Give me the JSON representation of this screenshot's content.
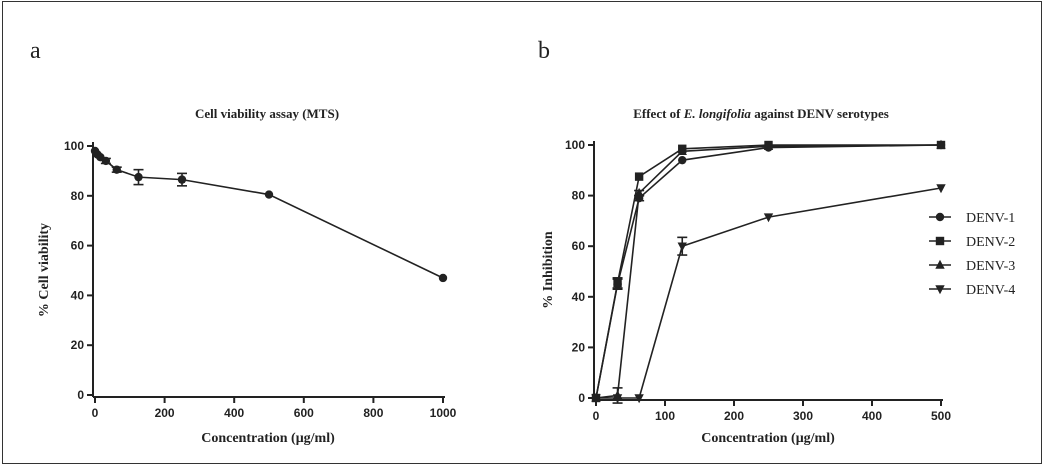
{
  "chart_data": [
    {
      "panel": "a",
      "type": "line",
      "title": "Cell viability assay (MTS)",
      "xlabel": "Concentration (μg/ml)",
      "ylabel": "% Cell viability",
      "xlim": [
        0,
        1000
      ],
      "ylim": [
        0,
        100
      ],
      "xticks": [
        0,
        200,
        400,
        600,
        800,
        1000
      ],
      "yticks": [
        0,
        20,
        40,
        60,
        80,
        100
      ],
      "grid": false,
      "series": [
        {
          "marker": "circle",
          "x": [
            0,
            3.9,
            7.8,
            15.6,
            31.25,
            62.5,
            125,
            250,
            500,
            1000
          ],
          "y": [
            98,
            97,
            96.5,
            95.5,
            94,
            90.5,
            87.5,
            86.5,
            80.5,
            47
          ],
          "err": [
            0.5,
            0.5,
            0.5,
            0.5,
            1,
            1,
            3,
            2.5,
            0.5,
            0.5
          ]
        }
      ]
    },
    {
      "panel": "b",
      "type": "line",
      "title_parts": [
        "Effect of ",
        "E. longifolia",
        " against DENV serotypes"
      ],
      "xlabel": "Concentration (μg/ml)",
      "ylabel": "% Inhibition",
      "xlim": [
        0,
        500
      ],
      "ylim": [
        0,
        100
      ],
      "xticks": [
        0,
        100,
        200,
        300,
        400,
        500
      ],
      "yticks": [
        0,
        20,
        40,
        60,
        80,
        100
      ],
      "grid": false,
      "legend_position": "right",
      "series": [
        {
          "name": "DENV-1",
          "marker": "circle",
          "x": [
            0,
            31.25,
            62.5,
            125,
            250,
            500
          ],
          "y": [
            0,
            45,
            79,
            94,
            99,
            100
          ],
          "err": [
            0,
            2,
            1,
            0.5,
            0.5,
            0.5
          ]
        },
        {
          "name": "DENV-2",
          "marker": "square",
          "x": [
            0,
            31.25,
            62.5,
            125,
            250,
            500
          ],
          "y": [
            0,
            45.5,
            87.5,
            98.5,
            100,
            100
          ],
          "err": [
            0,
            2,
            0.5,
            0.5,
            0.5,
            0.5
          ]
        },
        {
          "name": "DENV-3",
          "marker": "triangle-up",
          "x": [
            0,
            31.25,
            62.5,
            125,
            250,
            500
          ],
          "y": [
            0,
            1,
            81,
            97.5,
            99.5,
            100
          ],
          "err": [
            0,
            3,
            1,
            0.5,
            0.5,
            0.5
          ]
        },
        {
          "name": "DENV-4",
          "marker": "triangle-down",
          "x": [
            0,
            31.25,
            62.5,
            125,
            250,
            500
          ],
          "y": [
            0,
            0,
            0,
            60,
            71.5,
            83
          ],
          "err": [
            0,
            0,
            0,
            3.5,
            0.5,
            0.5
          ]
        }
      ]
    }
  ]
}
